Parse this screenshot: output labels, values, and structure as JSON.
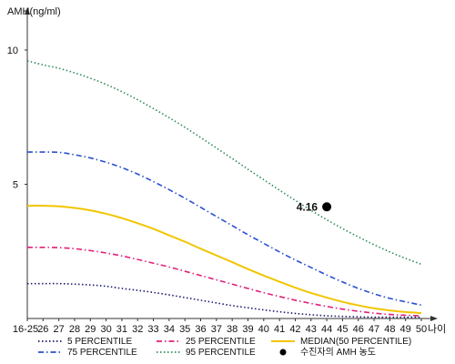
{
  "chart_data": {
    "type": "line",
    "ylabel": "AMH(ng/ml)",
    "xlabel": "나이",
    "categories": [
      "16-25",
      "26",
      "27",
      "28",
      "29",
      "30",
      "31",
      "32",
      "33",
      "34",
      "35",
      "36",
      "37",
      "38",
      "39",
      "40",
      "41",
      "42",
      "43",
      "44",
      "45",
      "46",
      "47",
      "48",
      "49",
      "50"
    ],
    "y_ticks": [
      5,
      10
    ],
    "ylim": [
      0,
      11
    ],
    "grid": false,
    "legend_position": "bottom",
    "series": [
      {
        "name": "5 PERCENTILE",
        "color": "#1a1a6e",
        "dash": "dotted",
        "values": [
          1.3,
          1.3,
          1.3,
          1.28,
          1.25,
          1.2,
          1.12,
          1.05,
          0.97,
          0.88,
          0.78,
          0.68,
          0.58,
          0.48,
          0.4,
          0.32,
          0.25,
          0.19,
          0.14,
          0.1,
          0.08,
          0.06,
          0.05,
          0.05,
          0.05,
          0.05
        ]
      },
      {
        "name": "25 PERCENTILE",
        "color": "#e0207a",
        "dash": "dashdot",
        "values": [
          2.65,
          2.65,
          2.64,
          2.6,
          2.53,
          2.44,
          2.33,
          2.2,
          2.06,
          1.92,
          1.76,
          1.6,
          1.44,
          1.28,
          1.12,
          0.96,
          0.82,
          0.68,
          0.56,
          0.45,
          0.35,
          0.27,
          0.2,
          0.15,
          0.12,
          0.1
        ]
      },
      {
        "name": "MEDIAN(50 PERCENTILE)",
        "color": "#f2c500",
        "dash": "solid",
        "values": [
          4.2,
          4.2,
          4.18,
          4.12,
          4.03,
          3.9,
          3.74,
          3.55,
          3.34,
          3.1,
          2.86,
          2.6,
          2.35,
          2.1,
          1.84,
          1.6,
          1.37,
          1.15,
          0.95,
          0.78,
          0.62,
          0.49,
          0.38,
          0.3,
          0.24,
          0.2
        ]
      },
      {
        "name": "75 PERCENTILE",
        "color": "#2a4fd0",
        "dash": "dashdot",
        "values": [
          6.2,
          6.2,
          6.19,
          6.1,
          5.98,
          5.82,
          5.62,
          5.38,
          5.1,
          4.8,
          4.48,
          4.14,
          3.8,
          3.46,
          3.12,
          2.8,
          2.48,
          2.18,
          1.9,
          1.62,
          1.36,
          1.12,
          0.92,
          0.75,
          0.62,
          0.5
        ]
      },
      {
        "name": "95 PERCENTILE",
        "color": "#2e8b57",
        "dash": "dotted",
        "values": [
          9.6,
          9.45,
          9.32,
          9.15,
          8.95,
          8.72,
          8.45,
          8.15,
          7.82,
          7.48,
          7.12,
          6.74,
          6.35,
          5.96,
          5.56,
          5.17,
          4.78,
          4.4,
          4.03,
          3.68,
          3.35,
          3.04,
          2.75,
          2.48,
          2.24,
          2.02
        ]
      }
    ],
    "patient": {
      "label": "4.16",
      "legend": "수진자의 AMH 농도",
      "x_index": 19,
      "y": 4.16
    }
  }
}
